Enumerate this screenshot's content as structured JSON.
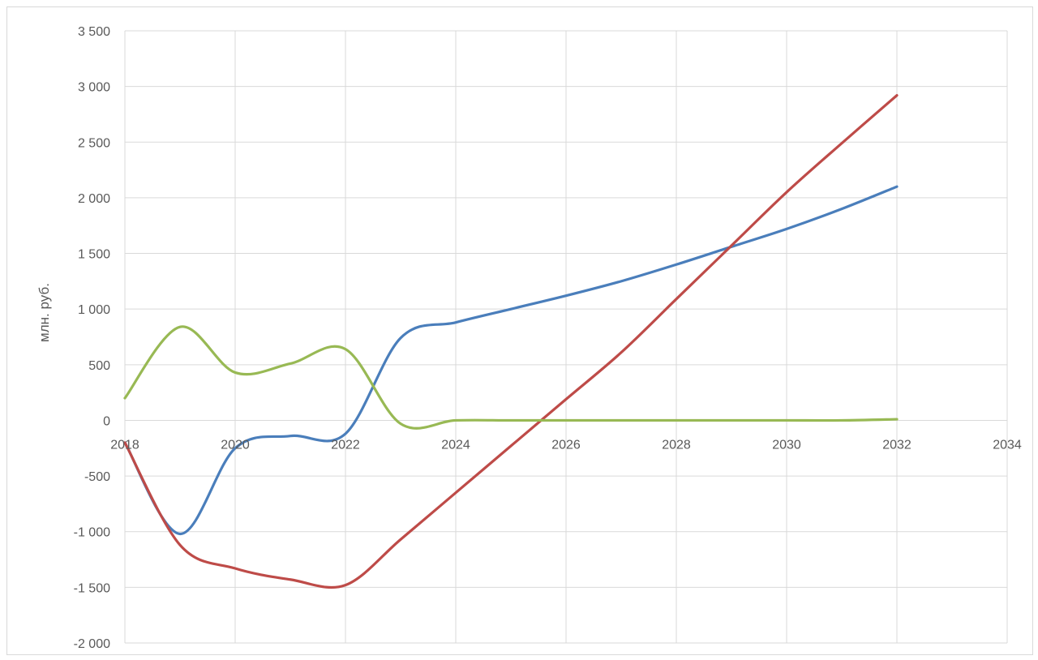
{
  "chart_data": {
    "type": "line",
    "title": "",
    "xlabel": "",
    "ylabel": "млн. руб.",
    "xlim": [
      2018,
      2034
    ],
    "ylim": [
      -2000,
      3500
    ],
    "x_ticks": [
      2018,
      2020,
      2022,
      2024,
      2026,
      2028,
      2030,
      2032,
      2034
    ],
    "y_ticks": [
      -2000,
      -1500,
      -1000,
      -500,
      0,
      500,
      1000,
      1500,
      2000,
      2500,
      3000,
      3500
    ],
    "x_tick_labels": [
      "2018",
      "2020",
      "2022",
      "2024",
      "2026",
      "2028",
      "2030",
      "2032",
      "2034"
    ],
    "y_tick_labels": [
      "-2 000",
      "-1 500",
      "-1 000",
      "-500",
      "0",
      "500",
      "1 000",
      "1 500",
      "2 000",
      "2 500",
      "3 000",
      "3 500"
    ],
    "grid": true,
    "legend": "none",
    "series": [
      {
        "color": "#4a7ebb",
        "x": [
          2018,
          2019,
          2020,
          2021,
          2022,
          2023,
          2024,
          2025,
          2026,
          2027,
          2028,
          2029,
          2030,
          2031,
          2032
        ],
        "values": [
          -200,
          -1020,
          -250,
          -140,
          -120,
          740,
          880,
          1000,
          1120,
          1250,
          1400,
          1560,
          1720,
          1900,
          2100
        ]
      },
      {
        "color": "#be4b48",
        "x": [
          2018,
          2019,
          2020,
          2021,
          2022,
          2023,
          2024,
          2025,
          2026,
          2027,
          2028,
          2029,
          2030,
          2031,
          2032
        ],
        "values": [
          -200,
          -1120,
          -1330,
          -1430,
          -1480,
          -1070,
          -650,
          -230,
          190,
          610,
          1090,
          1570,
          2050,
          2490,
          2920
        ]
      },
      {
        "color": "#98b954",
        "x": [
          2018,
          2019,
          2020,
          2021,
          2022,
          2023,
          2024,
          2025,
          2026,
          2027,
          2028,
          2029,
          2030,
          2031,
          2032
        ],
        "values": [
          200,
          840,
          430,
          510,
          640,
          -30,
          0,
          0,
          0,
          0,
          0,
          0,
          0,
          0,
          10
        ]
      }
    ]
  }
}
